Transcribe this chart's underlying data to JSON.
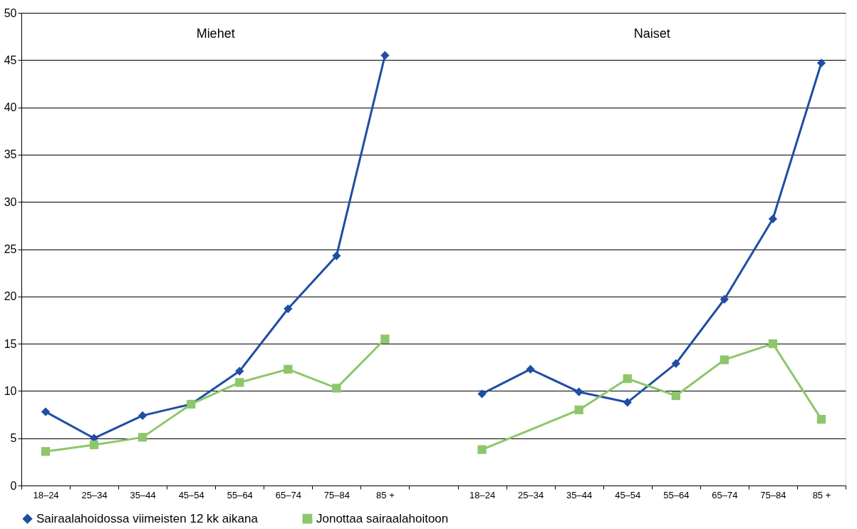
{
  "chart_data": {
    "type": "line",
    "categories": [
      "18–24",
      "25–34",
      "35–44",
      "45–54",
      "55–64",
      "65–74",
      "75–84",
      "85 +",
      null,
      "18–24",
      "25–34",
      "35–44",
      "45–54",
      "55–64",
      "65–74",
      "75–84",
      "85 +"
    ],
    "series": [
      {
        "name": "Sairaalahoidossa viimeisten 12 kk aikana",
        "color": "#1f4ea3",
        "marker": "diamond",
        "values": [
          7.8,
          5.0,
          7.4,
          8.6,
          12.1,
          18.7,
          24.3,
          45.5,
          null,
          9.7,
          12.3,
          9.9,
          8.8,
          12.9,
          19.7,
          28.2,
          44.7
        ]
      },
      {
        "name": "Jonottaa sairaalahoitoon",
        "color": "#8dc66b",
        "marker": "square",
        "values": [
          3.6,
          4.3,
          5.1,
          8.6,
          10.9,
          12.3,
          10.3,
          15.5,
          null,
          3.8,
          null,
          8.0,
          11.3,
          9.5,
          13.3,
          15.0,
          7.0
        ]
      }
    ],
    "annotations": [
      "Miehet",
      "Naiset"
    ],
    "ylim": [
      0,
      50
    ],
    "yticks": [
      0,
      5,
      10,
      15,
      20,
      25,
      30,
      35,
      40,
      45,
      50
    ],
    "grid": "y",
    "legend": "bottom",
    "line_style": "solid"
  }
}
